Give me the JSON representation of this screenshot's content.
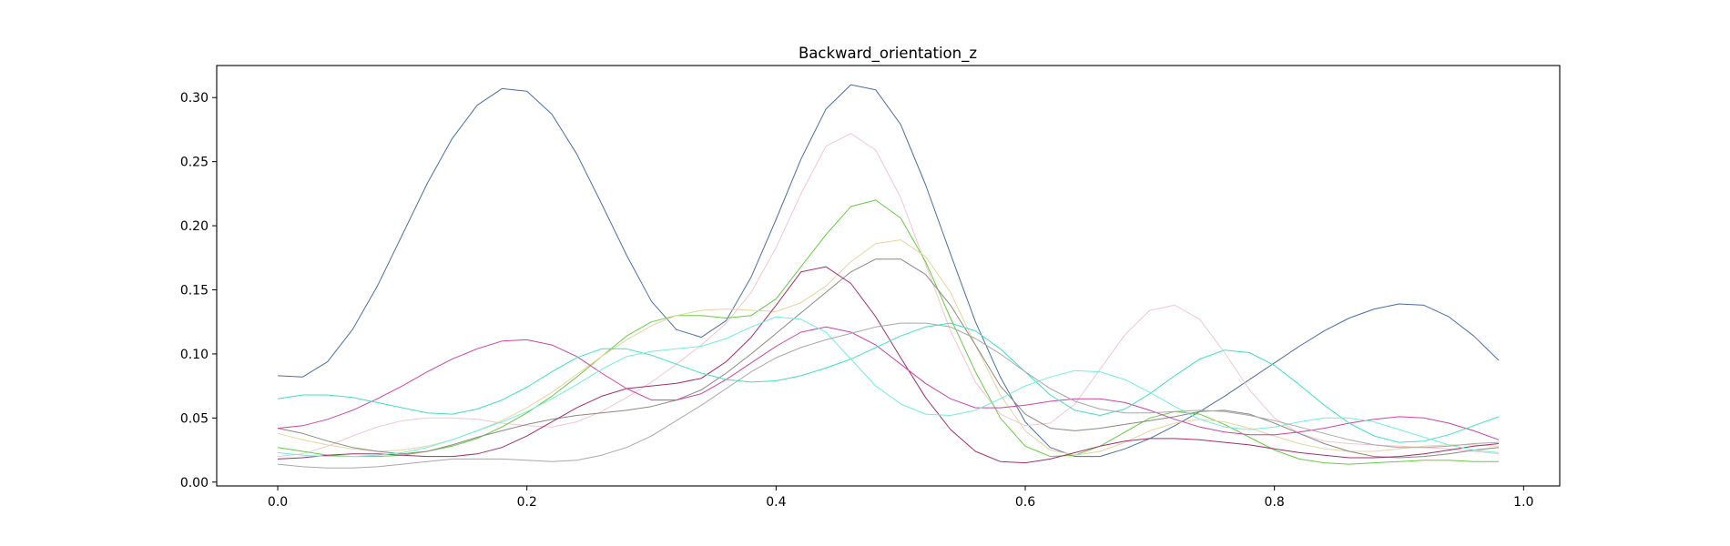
{
  "chart_data": {
    "type": "line",
    "title": "Backward_orientation_z",
    "xlabel": "",
    "ylabel": "",
    "xlim": [
      -0.049,
      1.029
    ],
    "ylim": [
      -0.003,
      0.325
    ],
    "grid": false,
    "x_ticks": [
      0.0,
      0.2,
      0.4,
      0.6,
      0.8,
      1.0
    ],
    "x_tick_labels": [
      "0.0",
      "0.2",
      "0.4",
      "0.6",
      "0.8",
      "1.0"
    ],
    "y_ticks": [
      0.0,
      0.05,
      0.1,
      0.15,
      0.2,
      0.25,
      0.3
    ],
    "y_tick_labels": [
      "0.00",
      "0.05",
      "0.10",
      "0.15",
      "0.20",
      "0.25",
      "0.30"
    ],
    "x": [
      0.0,
      0.02,
      0.04,
      0.06,
      0.08,
      0.1,
      0.12,
      0.14,
      0.16,
      0.18,
      0.2,
      0.22,
      0.24,
      0.26,
      0.28,
      0.3,
      0.32,
      0.34,
      0.36,
      0.38,
      0.4,
      0.42,
      0.44,
      0.46,
      0.48,
      0.5,
      0.52,
      0.54,
      0.56,
      0.58,
      0.6,
      0.62,
      0.64,
      0.66,
      0.68,
      0.7,
      0.72,
      0.74,
      0.76,
      0.78,
      0.8,
      0.82,
      0.84,
      0.86,
      0.88,
      0.9,
      0.92,
      0.94,
      0.96,
      0.98
    ],
    "series": [
      {
        "color": "#4a6fa5",
        "values": [
          0.083,
          0.082,
          0.094,
          0.119,
          0.153,
          0.193,
          0.233,
          0.268,
          0.294,
          0.307,
          0.305,
          0.287,
          0.256,
          0.217,
          0.177,
          0.141,
          0.119,
          0.113,
          0.126,
          0.16,
          0.205,
          0.252,
          0.291,
          0.31,
          0.306,
          0.279,
          0.232,
          0.178,
          0.125,
          0.082,
          0.047,
          0.027,
          0.02,
          0.02,
          0.026,
          0.034,
          0.044,
          0.055,
          0.067,
          0.08,
          0.093,
          0.106,
          0.118,
          0.128,
          0.135,
          0.139,
          0.138,
          0.129,
          0.114,
          0.095
        ]
      },
      {
        "color": "#f5c5cf",
        "values": [
          0.02,
          0.022,
          0.028,
          0.036,
          0.043,
          0.048,
          0.05,
          0.05,
          0.049,
          0.046,
          0.044,
          0.043,
          0.047,
          0.055,
          0.066,
          0.078,
          0.092,
          0.107,
          0.124,
          0.148,
          0.183,
          0.225,
          0.262,
          0.272,
          0.259,
          0.222,
          0.17,
          0.118,
          0.078,
          0.053,
          0.044,
          0.046,
          0.061,
          0.088,
          0.115,
          0.134,
          0.138,
          0.127,
          0.101,
          0.072,
          0.05,
          0.038,
          0.032,
          0.03,
          0.029,
          0.028,
          0.027,
          0.026,
          0.024,
          0.022
        ]
      },
      {
        "color": "#66cc44",
        "values": [
          0.027,
          0.024,
          0.021,
          0.02,
          0.02,
          0.021,
          0.024,
          0.028,
          0.034,
          0.043,
          0.054,
          0.067,
          0.082,
          0.098,
          0.114,
          0.125,
          0.13,
          0.13,
          0.128,
          0.13,
          0.143,
          0.168,
          0.193,
          0.215,
          0.22,
          0.206,
          0.172,
          0.128,
          0.086,
          0.05,
          0.028,
          0.02,
          0.021,
          0.028,
          0.039,
          0.05,
          0.055,
          0.053,
          0.045,
          0.035,
          0.025,
          0.018,
          0.015,
          0.014,
          0.015,
          0.016,
          0.017,
          0.017,
          0.016,
          0.016
        ]
      },
      {
        "color": "#e8d4a0",
        "values": [
          0.038,
          0.033,
          0.029,
          0.026,
          0.024,
          0.025,
          0.028,
          0.033,
          0.04,
          0.048,
          0.058,
          0.07,
          0.084,
          0.098,
          0.111,
          0.122,
          0.13,
          0.134,
          0.135,
          0.134,
          0.133,
          0.14,
          0.153,
          0.172,
          0.186,
          0.189,
          0.176,
          0.148,
          0.107,
          0.068,
          0.04,
          0.025,
          0.021,
          0.024,
          0.031,
          0.04,
          0.046,
          0.049,
          0.047,
          0.042,
          0.036,
          0.03,
          0.026,
          0.024,
          0.024,
          0.026,
          0.028,
          0.029,
          0.029,
          0.028
        ]
      },
      {
        "color": "#8a8a80",
        "values": [
          0.042,
          0.038,
          0.032,
          0.027,
          0.024,
          0.022,
          0.024,
          0.029,
          0.035,
          0.04,
          0.045,
          0.049,
          0.052,
          0.054,
          0.056,
          0.059,
          0.064,
          0.072,
          0.085,
          0.1,
          0.116,
          0.132,
          0.148,
          0.164,
          0.174,
          0.174,
          0.162,
          0.138,
          0.107,
          0.075,
          0.053,
          0.042,
          0.04,
          0.042,
          0.045,
          0.048,
          0.051,
          0.055,
          0.056,
          0.053,
          0.046,
          0.038,
          0.03,
          0.024,
          0.02,
          0.019,
          0.02,
          0.022,
          0.025,
          0.027
        ]
      },
      {
        "color": "#a0306a",
        "values": [
          0.018,
          0.019,
          0.021,
          0.022,
          0.022,
          0.021,
          0.02,
          0.02,
          0.022,
          0.027,
          0.036,
          0.047,
          0.058,
          0.067,
          0.073,
          0.075,
          0.077,
          0.081,
          0.094,
          0.113,
          0.138,
          0.164,
          0.168,
          0.155,
          0.129,
          0.097,
          0.066,
          0.041,
          0.024,
          0.016,
          0.015,
          0.018,
          0.023,
          0.028,
          0.032,
          0.034,
          0.034,
          0.033,
          0.031,
          0.029,
          0.026,
          0.023,
          0.021,
          0.019,
          0.019,
          0.02,
          0.022,
          0.025,
          0.028,
          0.03
        ]
      },
      {
        "color": "#cc44aa",
        "values": [
          0.042,
          0.044,
          0.049,
          0.056,
          0.065,
          0.075,
          0.086,
          0.096,
          0.104,
          0.11,
          0.111,
          0.107,
          0.098,
          0.085,
          0.073,
          0.064,
          0.064,
          0.069,
          0.08,
          0.093,
          0.106,
          0.117,
          0.121,
          0.117,
          0.107,
          0.092,
          0.077,
          0.065,
          0.058,
          0.058,
          0.06,
          0.063,
          0.065,
          0.065,
          0.062,
          0.056,
          0.049,
          0.043,
          0.039,
          0.037,
          0.037,
          0.039,
          0.042,
          0.046,
          0.049,
          0.051,
          0.05,
          0.046,
          0.04,
          0.033
        ]
      },
      {
        "color": "#40e0c0",
        "values": [
          0.065,
          0.068,
          0.068,
          0.066,
          0.062,
          0.058,
          0.054,
          0.053,
          0.057,
          0.064,
          0.074,
          0.086,
          0.097,
          0.104,
          0.104,
          0.099,
          0.092,
          0.085,
          0.08,
          0.078,
          0.079,
          0.083,
          0.089,
          0.096,
          0.105,
          0.114,
          0.121,
          0.124,
          0.118,
          0.104,
          0.086,
          0.068,
          0.056,
          0.052,
          0.057,
          0.069,
          0.083,
          0.096,
          0.103,
          0.101,
          0.091,
          0.076,
          0.06,
          0.046,
          0.036,
          0.031,
          0.032,
          0.037,
          0.044,
          0.051
        ]
      },
      {
        "color": "#70f0d8",
        "values": [
          0.023,
          0.021,
          0.02,
          0.02,
          0.021,
          0.023,
          0.027,
          0.033,
          0.04,
          0.047,
          0.055,
          0.065,
          0.076,
          0.088,
          0.098,
          0.102,
          0.104,
          0.106,
          0.112,
          0.121,
          0.129,
          0.127,
          0.117,
          0.096,
          0.075,
          0.061,
          0.053,
          0.052,
          0.056,
          0.065,
          0.075,
          0.082,
          0.087,
          0.086,
          0.08,
          0.07,
          0.059,
          0.049,
          0.043,
          0.041,
          0.043,
          0.047,
          0.05,
          0.05,
          0.047,
          0.041,
          0.035,
          0.029,
          0.025,
          0.023
        ]
      },
      {
        "color": "#a8a8a8",
        "values": [
          0.014,
          0.012,
          0.011,
          0.011,
          0.012,
          0.014,
          0.016,
          0.018,
          0.018,
          0.018,
          0.017,
          0.016,
          0.017,
          0.021,
          0.027,
          0.036,
          0.048,
          0.06,
          0.073,
          0.086,
          0.097,
          0.105,
          0.111,
          0.116,
          0.121,
          0.124,
          0.124,
          0.121,
          0.112,
          0.1,
          0.086,
          0.073,
          0.063,
          0.057,
          0.054,
          0.054,
          0.055,
          0.056,
          0.055,
          0.052,
          0.048,
          0.043,
          0.038,
          0.033,
          0.029,
          0.027,
          0.027,
          0.028,
          0.03,
          0.031
        ]
      }
    ]
  }
}
